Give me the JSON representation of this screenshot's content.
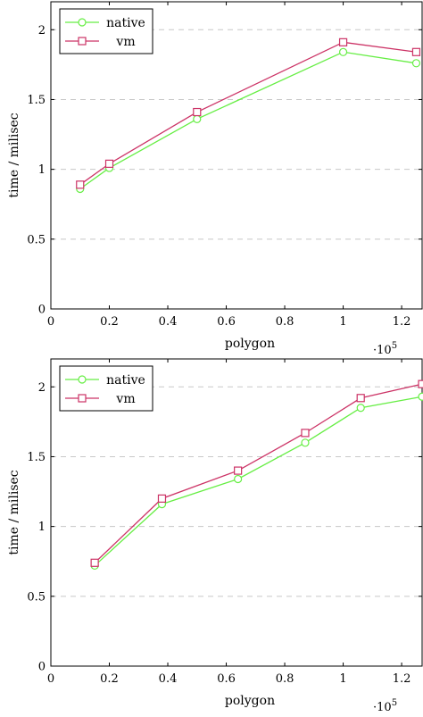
{
  "chart_data": [
    {
      "type": "line",
      "xlabel": "polygon",
      "ylabel": "time / milisec",
      "x_multiplier_label": "·10",
      "x_multiplier_exp": "5",
      "xlim": [
        0,
        1.27
      ],
      "ylim": [
        0,
        2.2
      ],
      "xticks": [
        0,
        0.2,
        0.4,
        0.6,
        0.8,
        1,
        1.2
      ],
      "xtick_labels": [
        "0",
        "0.2",
        "0.4",
        "0.6",
        "0.8",
        "1",
        "1.2"
      ],
      "yticks": [
        0,
        0.5,
        1,
        1.5,
        2
      ],
      "ytick_labels": [
        "0",
        "0.5",
        "1",
        "1.5",
        "2"
      ],
      "grid": "horizontal-dashed",
      "legend_position": "top-left",
      "series": [
        {
          "name": "native",
          "color": "#66ee44",
          "marker": "circle",
          "x": [
            0.1,
            0.2,
            0.5,
            1.0,
            1.25
          ],
          "y": [
            0.86,
            1.01,
            1.36,
            1.84,
            1.76
          ]
        },
        {
          "name": "vm",
          "color": "#cc3366",
          "marker": "square",
          "x": [
            0.1,
            0.2,
            0.5,
            1.0,
            1.25
          ],
          "y": [
            0.89,
            1.04,
            1.41,
            1.91,
            1.84
          ]
        }
      ]
    },
    {
      "type": "line",
      "xlabel": "polygon",
      "ylabel": "time / milisec",
      "x_multiplier_label": "·10",
      "x_multiplier_exp": "5",
      "xlim": [
        0,
        1.27
      ],
      "ylim": [
        0,
        2.2
      ],
      "xticks": [
        0,
        0.2,
        0.4,
        0.6,
        0.8,
        1,
        1.2
      ],
      "xtick_labels": [
        "0",
        "0.2",
        "0.4",
        "0.6",
        "0.8",
        "1",
        "1.2"
      ],
      "yticks": [
        0,
        0.5,
        1,
        1.5,
        2
      ],
      "ytick_labels": [
        "0",
        "0.5",
        "1",
        "1.5",
        "2"
      ],
      "grid": "horizontal-dashed",
      "legend_position": "top-left",
      "series": [
        {
          "name": "native",
          "color": "#66ee44",
          "marker": "circle",
          "x": [
            0.15,
            0.38,
            0.64,
            0.87,
            1.06,
            1.27
          ],
          "y": [
            0.72,
            1.16,
            1.34,
            1.6,
            1.85,
            1.93
          ]
        },
        {
          "name": "vm",
          "color": "#cc3366",
          "marker": "square",
          "x": [
            0.15,
            0.38,
            0.64,
            0.87,
            1.06,
            1.27
          ],
          "y": [
            0.74,
            1.2,
            1.4,
            1.67,
            1.92,
            2.02
          ]
        }
      ]
    }
  ]
}
